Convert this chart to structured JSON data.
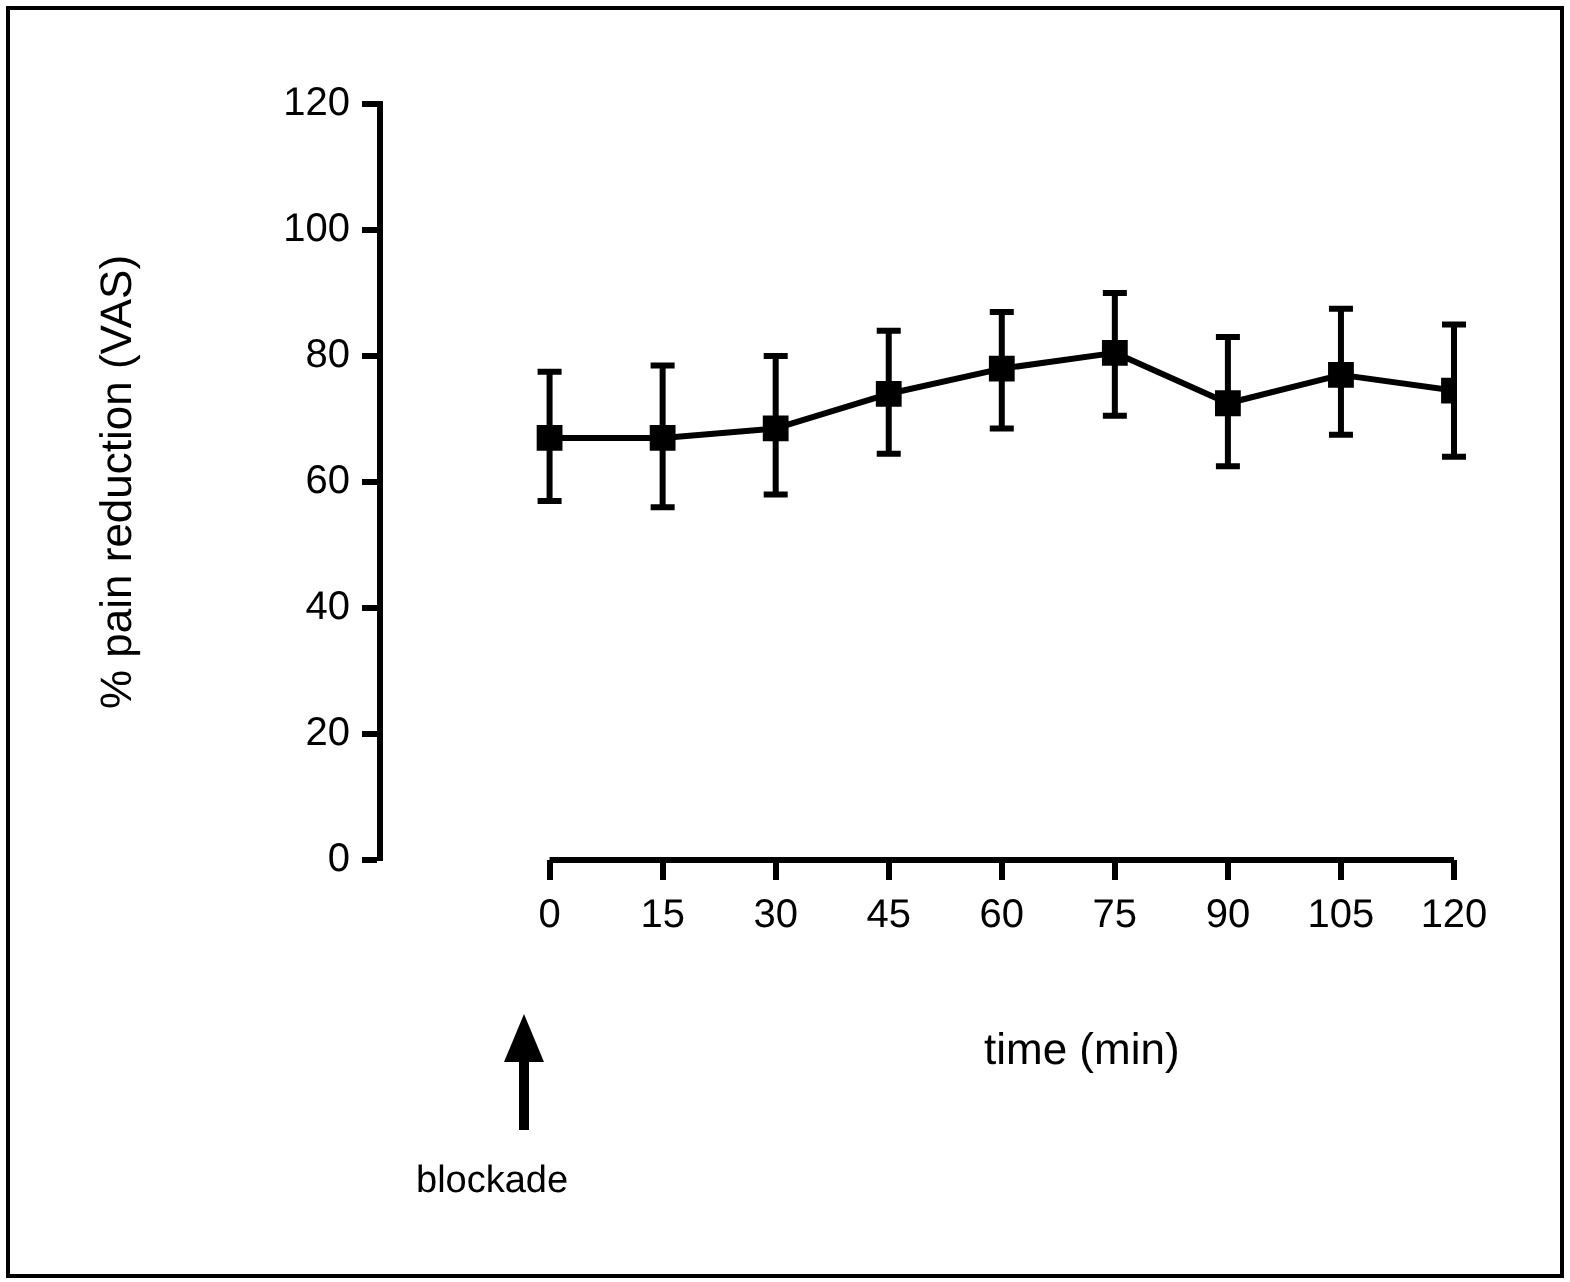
{
  "chart_data": {
    "type": "line",
    "xlabel": "time (min)",
    "ylabel": "% pain reduction (VAS)",
    "x": [
      0,
      15,
      30,
      45,
      60,
      75,
      90,
      105,
      120
    ],
    "series": [
      {
        "color": "#000000",
        "values": [
          67,
          67,
          68.5,
          74,
          78,
          80.5,
          72.5,
          77,
          74.5
        ],
        "errors": [
          [
            57,
            77.5
          ],
          [
            56,
            78.5
          ],
          [
            58,
            80
          ],
          [
            64.5,
            84
          ],
          [
            68.5,
            87
          ],
          [
            70.5,
            90
          ],
          [
            62.5,
            83
          ],
          [
            67.5,
            87.5
          ],
          [
            64,
            85
          ]
        ]
      }
    ],
    "xlim": [
      -22.5,
      120
    ],
    "xticks": [
      0,
      15,
      30,
      45,
      60,
      75,
      90,
      105,
      120
    ],
    "ylim": [
      0,
      120
    ],
    "yticks": [
      0,
      20,
      40,
      60,
      80,
      100,
      120
    ],
    "grid": false,
    "legend": false,
    "marker": "square",
    "line_style": "solid",
    "annotations": [
      "blockade"
    ]
  }
}
